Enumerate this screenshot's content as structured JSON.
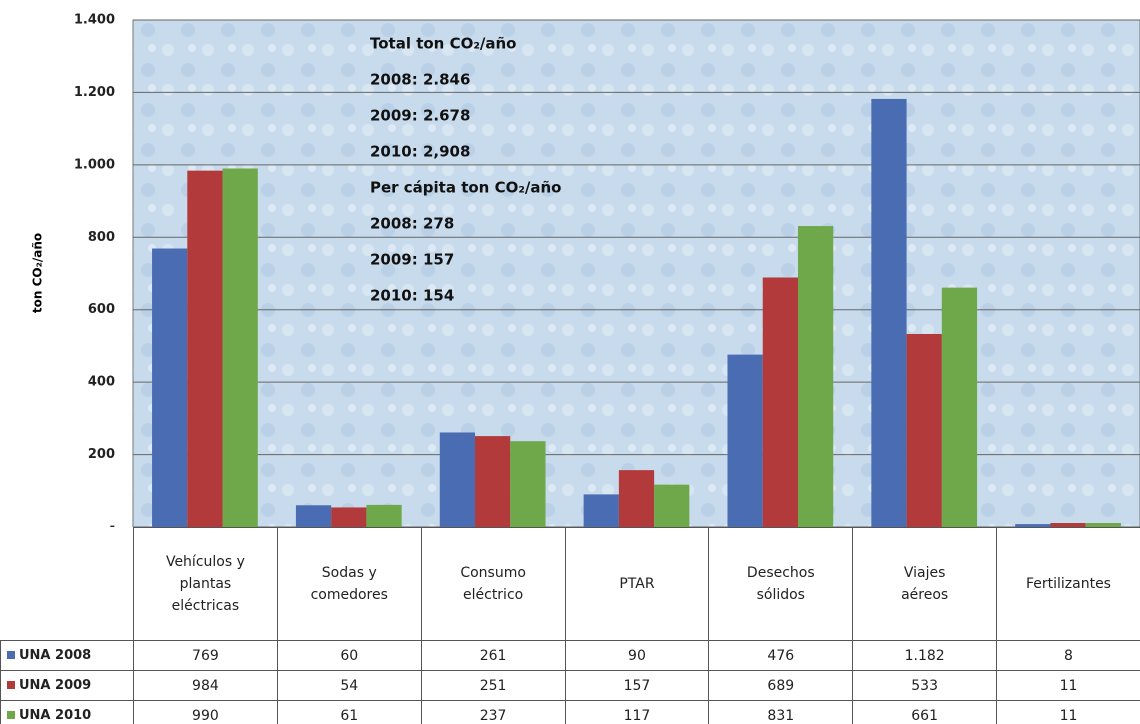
{
  "chart_data": {
    "type": "bar",
    "y_label": "ton CO₂/año",
    "annotations": [
      "Total ton CO₂/año",
      "2008:  2.846",
      "2009:  2.678",
      "2010:   2,908",
      "Per cápita ton CO₂/año",
      "2008:  278",
      "2009:  157",
      "2010:   154"
    ],
    "categories": [
      "Vehículos y plantas eléctricas",
      "Sodas y comedores",
      "Consumo eléctrico",
      "PTAR",
      "Desechos sólidos",
      "Viajes aéreos",
      "Fertilizantes"
    ],
    "series": [
      {
        "name": "UNA 2008",
        "color": "#4a6cb3",
        "values": [
          769,
          60,
          261,
          90,
          476,
          1182,
          8
        ],
        "value_labels": [
          "769",
          "60",
          "261",
          "90",
          "476",
          "1.182",
          "8"
        ]
      },
      {
        "name": "UNA 2009",
        "color": "#b23a3a",
        "values": [
          984,
          54,
          251,
          157,
          689,
          533,
          11
        ]
      },
      {
        "name": "UNA 2010",
        "color": "#6fa84a",
        "values": [
          990,
          61,
          237,
          117,
          831,
          661,
          11
        ]
      }
    ],
    "ylim": [
      0,
      1400
    ],
    "yticks": [
      {
        "value": 0,
        "label": "-"
      },
      200,
      400,
      600,
      800,
      {
        "value": 1000,
        "label": "1.000"
      },
      {
        "value": 1200,
        "label": "1.200"
      },
      {
        "value": 1400,
        "label": "1.400"
      }
    ],
    "grid": true
  }
}
